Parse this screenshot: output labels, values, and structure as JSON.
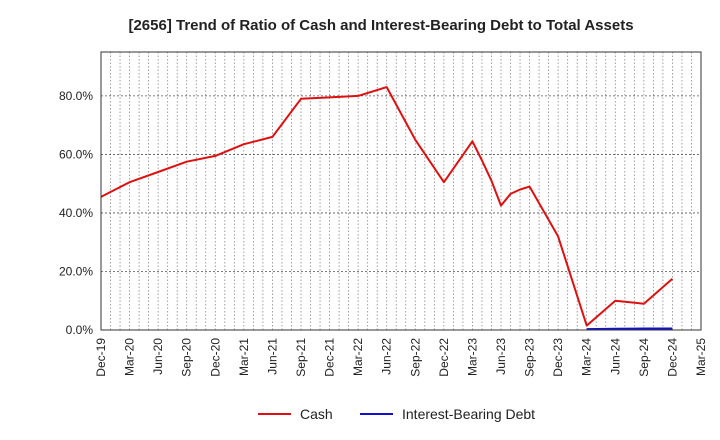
{
  "chart_data": {
    "type": "line",
    "title": "[2656]  Trend of Ratio of Cash and Interest-Bearing Debt to Total Assets",
    "xlabel": "",
    "ylabel": "",
    "ylim": [
      0,
      95
    ],
    "yticks": [
      0,
      20,
      40,
      60,
      80
    ],
    "ytick_labels": [
      "0.0%",
      "20.0%",
      "40.0%",
      "60.0%",
      "80.0%"
    ],
    "x_tick_labels": [
      "Dec-19",
      "Mar-20",
      "Jun-20",
      "Sep-20",
      "Dec-20",
      "Mar-21",
      "Jun-21",
      "Sep-21",
      "Dec-21",
      "Mar-22",
      "Jun-22",
      "Sep-22",
      "Dec-22",
      "Mar-23",
      "Jun-23",
      "Sep-23",
      "Dec-23",
      "Mar-24",
      "Jun-24",
      "Sep-24",
      "Dec-24",
      "Mar-25"
    ],
    "grid": true,
    "legend_position": "bottom-center",
    "series": [
      {
        "name": "Cash",
        "color": "#dd1111",
        "points": [
          [
            0,
            45.5
          ],
          [
            1,
            50.5
          ],
          [
            2,
            54
          ],
          [
            3,
            57.5
          ],
          [
            4,
            59.5
          ],
          [
            5,
            63.5
          ],
          [
            6,
            66
          ],
          [
            7,
            79
          ],
          [
            8,
            79.5
          ],
          [
            9,
            80
          ],
          [
            10,
            83
          ],
          [
            11,
            65
          ],
          [
            12,
            50.5
          ],
          [
            13,
            64.5
          ],
          [
            13.333,
            58
          ],
          [
            13.667,
            51
          ],
          [
            14,
            42.5
          ],
          [
            14.333,
            46.5
          ],
          [
            14.667,
            48
          ],
          [
            15,
            49
          ],
          [
            16,
            32
          ],
          [
            17,
            1.5
          ],
          [
            18,
            10
          ],
          [
            19,
            9
          ],
          [
            20,
            17.5
          ]
        ]
      },
      {
        "name": "Interest-Bearing Debt",
        "color": "#1111cc",
        "points": [
          [
            17,
            0.3
          ],
          [
            18,
            0.4
          ],
          [
            19,
            0.5
          ],
          [
            20,
            0.5
          ]
        ]
      }
    ]
  }
}
